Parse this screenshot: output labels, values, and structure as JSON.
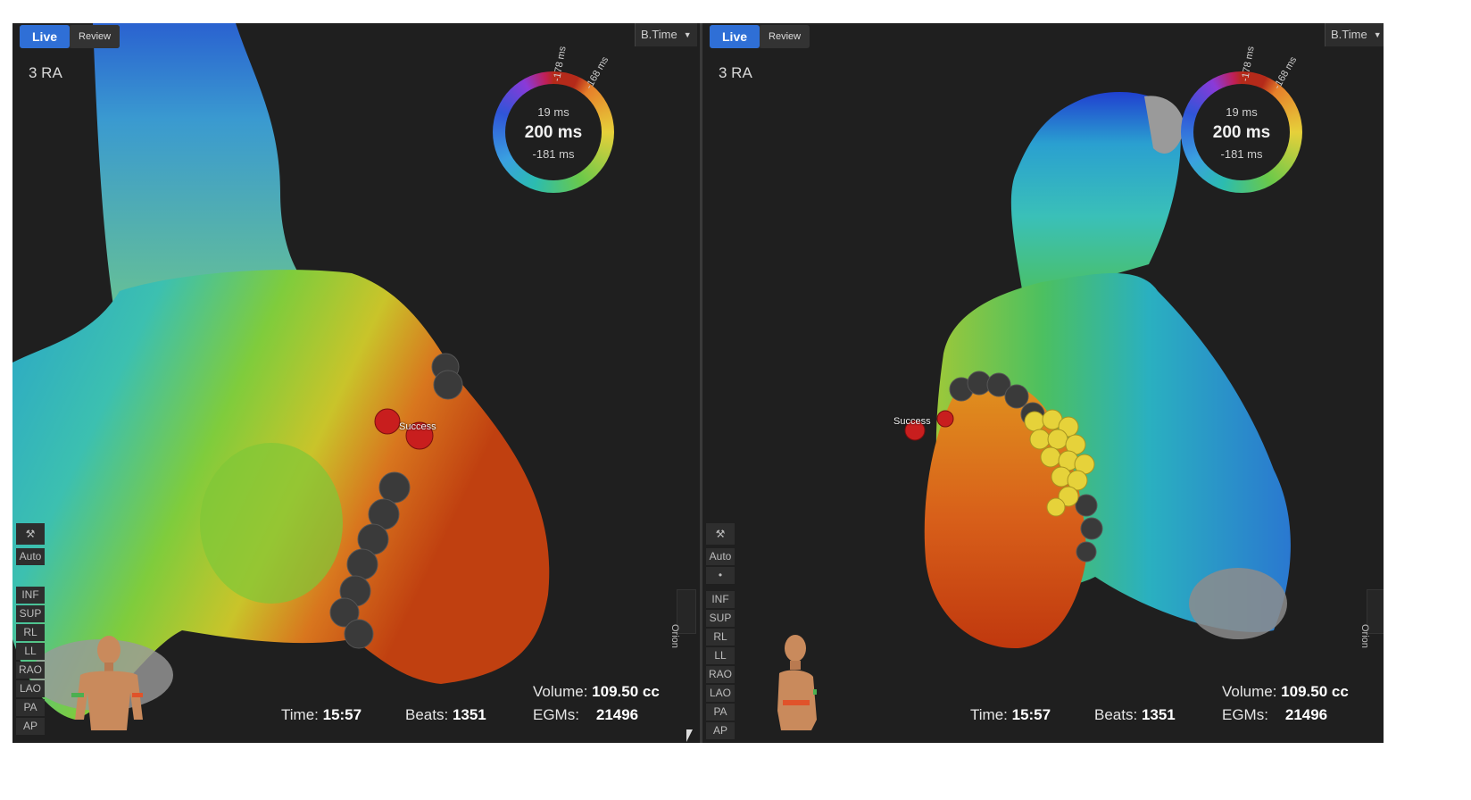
{
  "views": [
    {
      "mode_live": "Live",
      "mode_review": "Review",
      "map_label": "3 RA",
      "scale_dropdown": "B.Time",
      "ring": {
        "top": "19 ms",
        "center": "200 ms",
        "bottom": "-181 ms",
        "tick_a": "-178 ms",
        "tick_b": "-168 ms"
      },
      "toolbar": [
        "Auto",
        "INF",
        "SUP",
        "RL",
        "LL",
        "RAO",
        "LAO",
        "PA",
        "AP"
      ],
      "orion": "Orion",
      "lesion_label": "Success",
      "stats": {
        "time_label": "Time:",
        "time": "15:57",
        "beats_label": "Beats:",
        "beats": "1351",
        "volume_label": "Volume:",
        "volume": "109.50 cc",
        "egms_label": "EGMs:",
        "egms": "21496"
      }
    },
    {
      "mode_live": "Live",
      "mode_review": "Review",
      "map_label": "3 RA",
      "scale_dropdown": "B.Time",
      "ring": {
        "top": "19 ms",
        "center": "200 ms",
        "bottom": "-181 ms",
        "tick_a": "-178 ms",
        "tick_b": "-168 ms"
      },
      "toolbar": [
        "Auto",
        "•",
        "INF",
        "SUP",
        "RL",
        "LL",
        "RAO",
        "LAO",
        "PA",
        "AP"
      ],
      "orion": "Orion",
      "lesion_label": "Success",
      "stats": {
        "time_label": "Time:",
        "time": "15:57",
        "beats_label": "Beats:",
        "beats": "1351",
        "volume_label": "Volume:",
        "volume": "109.50 cc",
        "egms_label": "EGMs:",
        "egms": "21496"
      }
    }
  ],
  "colors": {
    "live_accent": "#2f6fd6",
    "lesion_red": "#c81e1e",
    "lesion_gray": "#3a3a3a",
    "lesion_yellow": "#e6d23a"
  },
  "icons": {
    "tool": "hammer-icon",
    "orientation": "torso-icon"
  }
}
